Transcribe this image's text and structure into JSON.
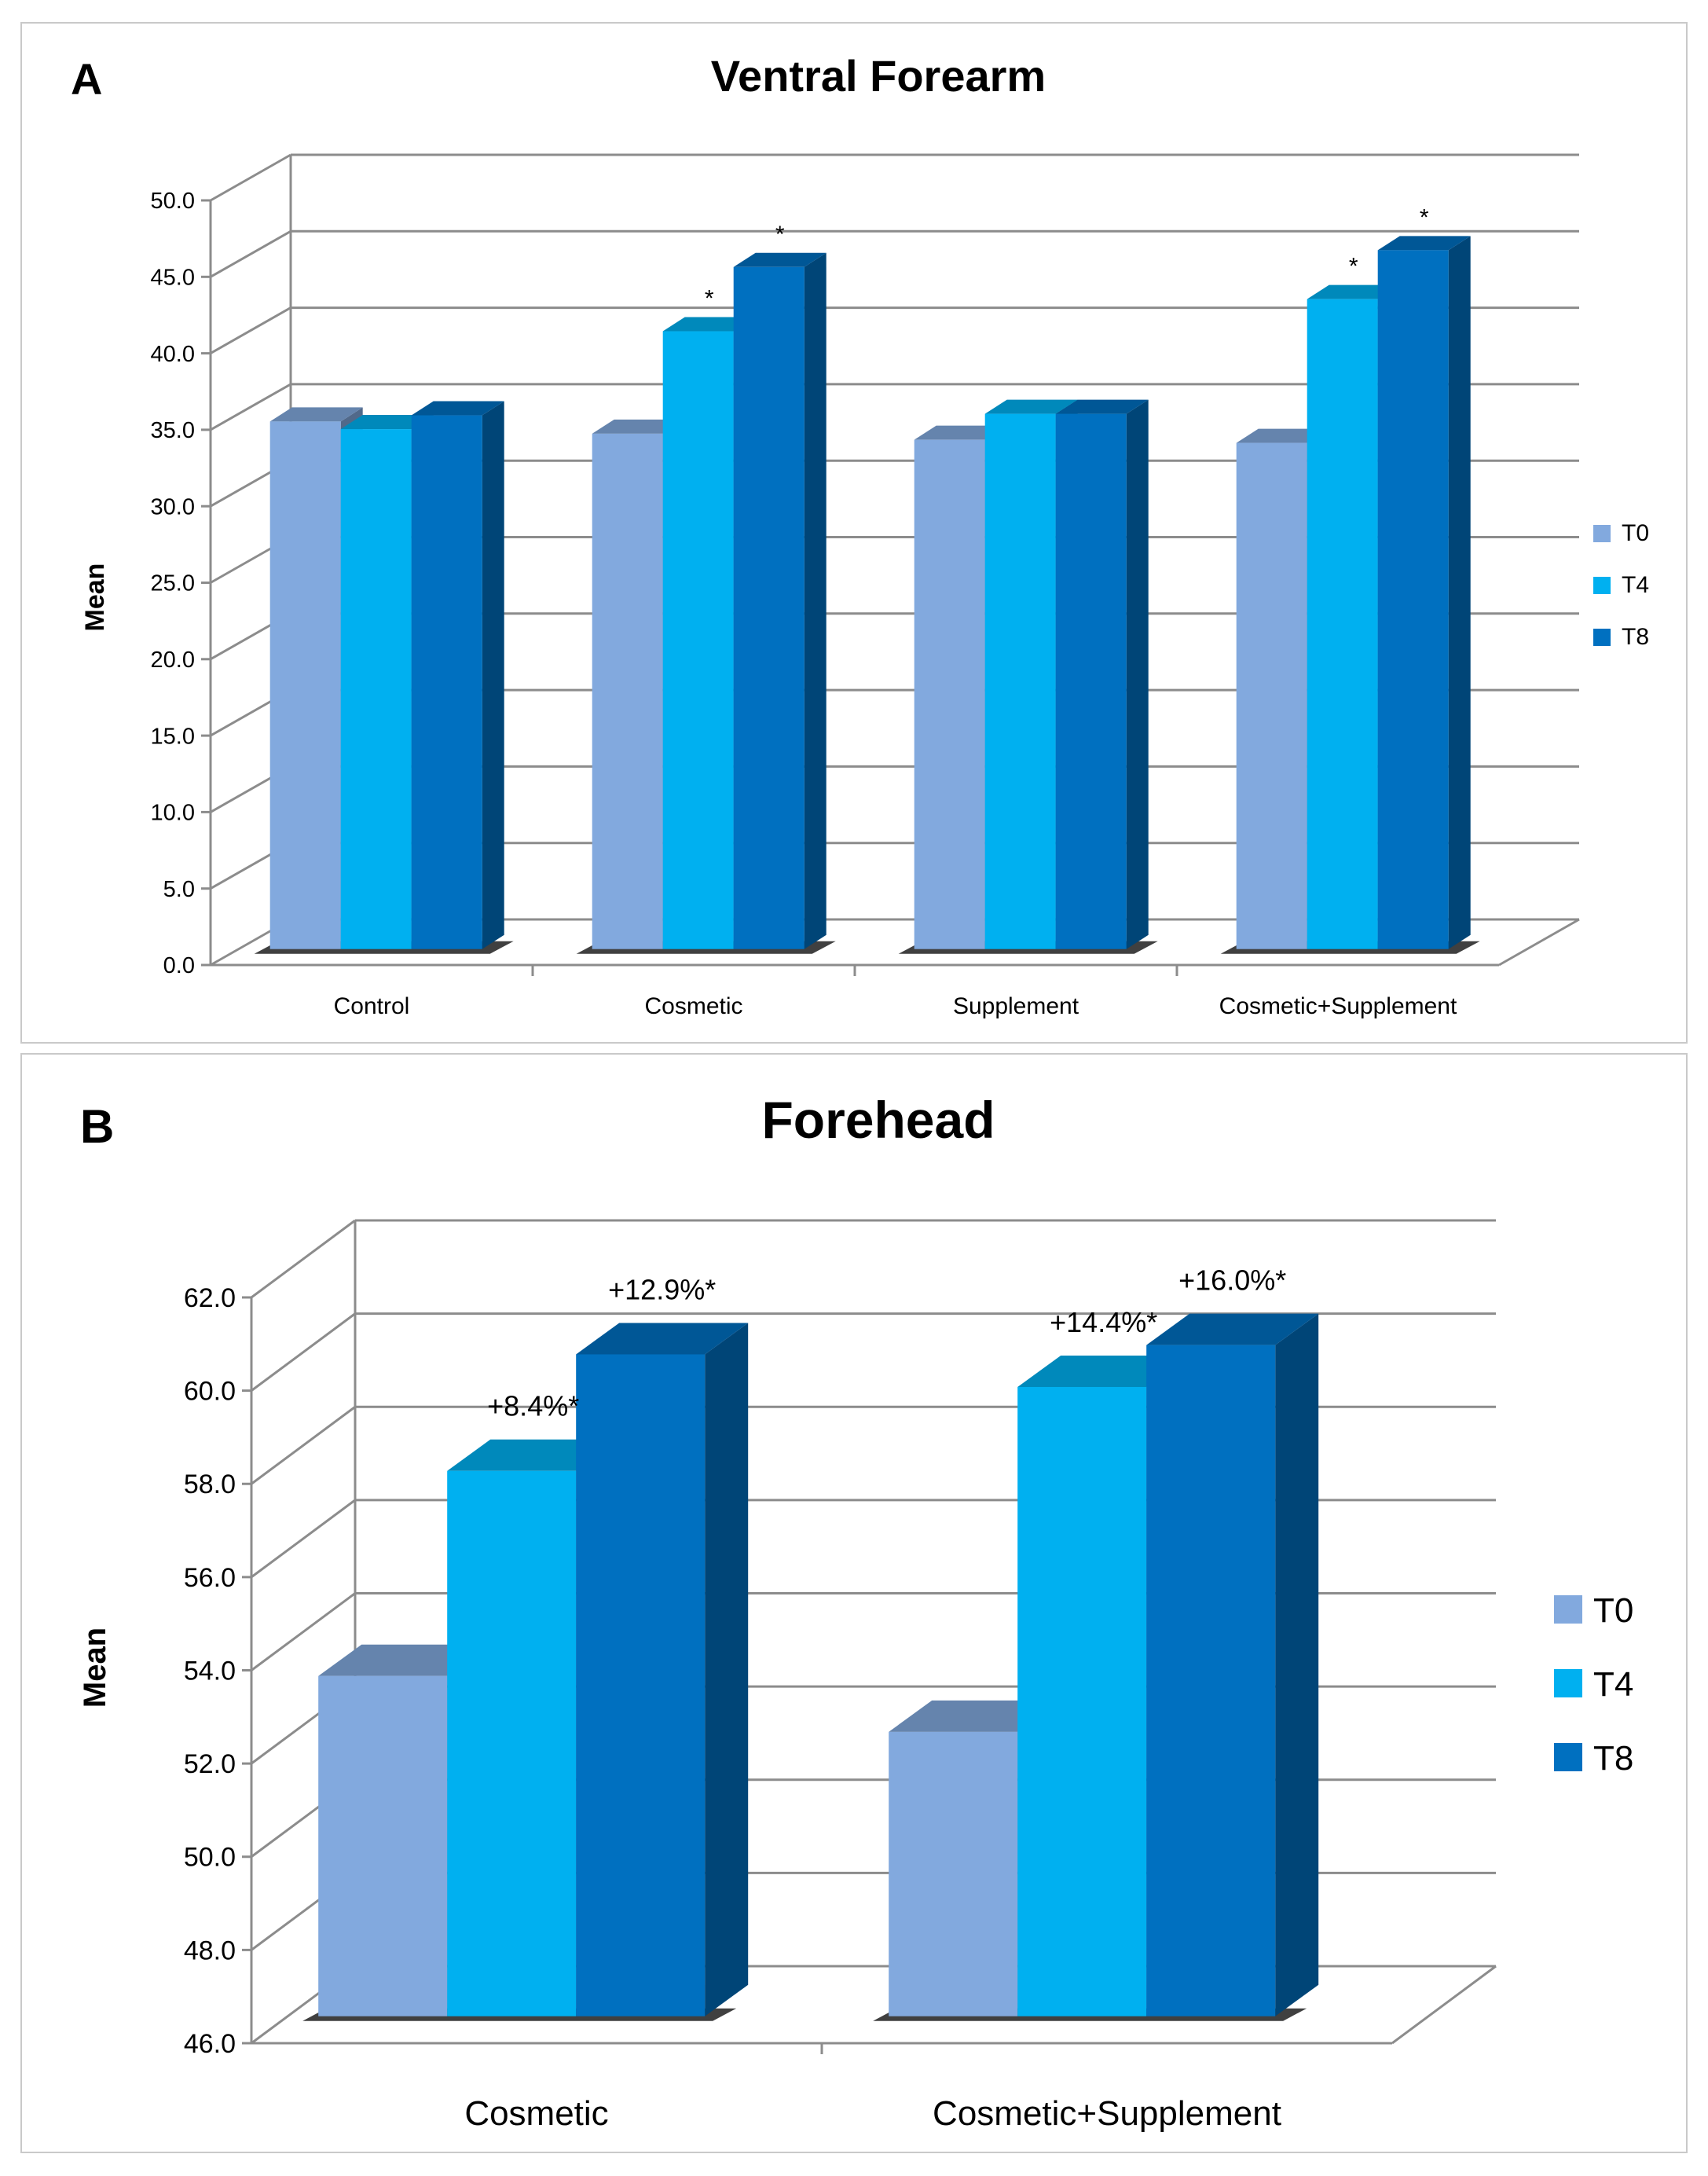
{
  "colors": {
    "T0": "#82a9de",
    "T4": "#00b0f0",
    "T8": "#0070c0",
    "grid": "#8c8c8c",
    "text": "#000000"
  },
  "chart_data": [
    {
      "type": "bar",
      "panel_label": "A",
      "title": "Ventral Forearm",
      "xlabel": "",
      "ylabel": "Mean",
      "ylim": [
        0,
        50
      ],
      "ytick_step": 5,
      "ytick_decimals": 1,
      "yticks": [
        "0.0",
        "5.0",
        "10.0",
        "15.0",
        "20.0",
        "25.0",
        "30.0",
        "35.0",
        "40.0",
        "45.0",
        "50.0"
      ],
      "categories": [
        "Control",
        "Cosmetic",
        "Supplement",
        "Cosmetic+Supplement"
      ],
      "series": [
        {
          "name": "T0",
          "values": [
            34.5,
            33.7,
            33.3,
            33.1
          ]
        },
        {
          "name": "T4",
          "values": [
            34.0,
            40.4,
            35.0,
            42.5
          ]
        },
        {
          "name": "T8",
          "values": [
            34.9,
            44.6,
            35.0,
            45.7
          ]
        }
      ],
      "annotations": [
        {
          "category": "Cosmetic",
          "series": "T4",
          "text": "*"
        },
        {
          "category": "Cosmetic",
          "series": "T8",
          "text": "*"
        },
        {
          "category": "Cosmetic+Supplement",
          "series": "T4",
          "text": "*"
        },
        {
          "category": "Cosmetic+Supplement",
          "series": "T8",
          "text": "*"
        }
      ],
      "legend": {
        "position": "right",
        "entries": [
          "T0",
          "T4",
          "T8"
        ]
      }
    },
    {
      "type": "bar",
      "panel_label": "B",
      "title": "Forehead",
      "xlabel": "",
      "ylabel": "Mean",
      "ylim": [
        46,
        62
      ],
      "ytick_step": 2,
      "ytick_decimals": 1,
      "yticks": [
        "46.0",
        "48.0",
        "50.0",
        "52.0",
        "54.0",
        "56.0",
        "58.0",
        "60.0",
        "62.0"
      ],
      "categories": [
        "Cosmetic",
        "Cosmetic+Supplement"
      ],
      "series": [
        {
          "name": "T0",
          "values": [
            53.3,
            52.1
          ]
        },
        {
          "name": "T4",
          "values": [
            57.7,
            59.5
          ]
        },
        {
          "name": "T8",
          "values": [
            60.2,
            60.4
          ]
        }
      ],
      "annotations": [
        {
          "category": "Cosmetic",
          "series": "T4",
          "text": "+8.4%*"
        },
        {
          "category": "Cosmetic",
          "series": "T8",
          "text": "+12.9%*"
        },
        {
          "category": "Cosmetic+Supplement",
          "series": "T4",
          "text": "+14.4%*"
        },
        {
          "category": "Cosmetic+Supplement",
          "series": "T8",
          "text": "+16.0%*"
        }
      ],
      "legend": {
        "position": "right",
        "entries": [
          "T0",
          "T4",
          "T8"
        ]
      }
    }
  ]
}
